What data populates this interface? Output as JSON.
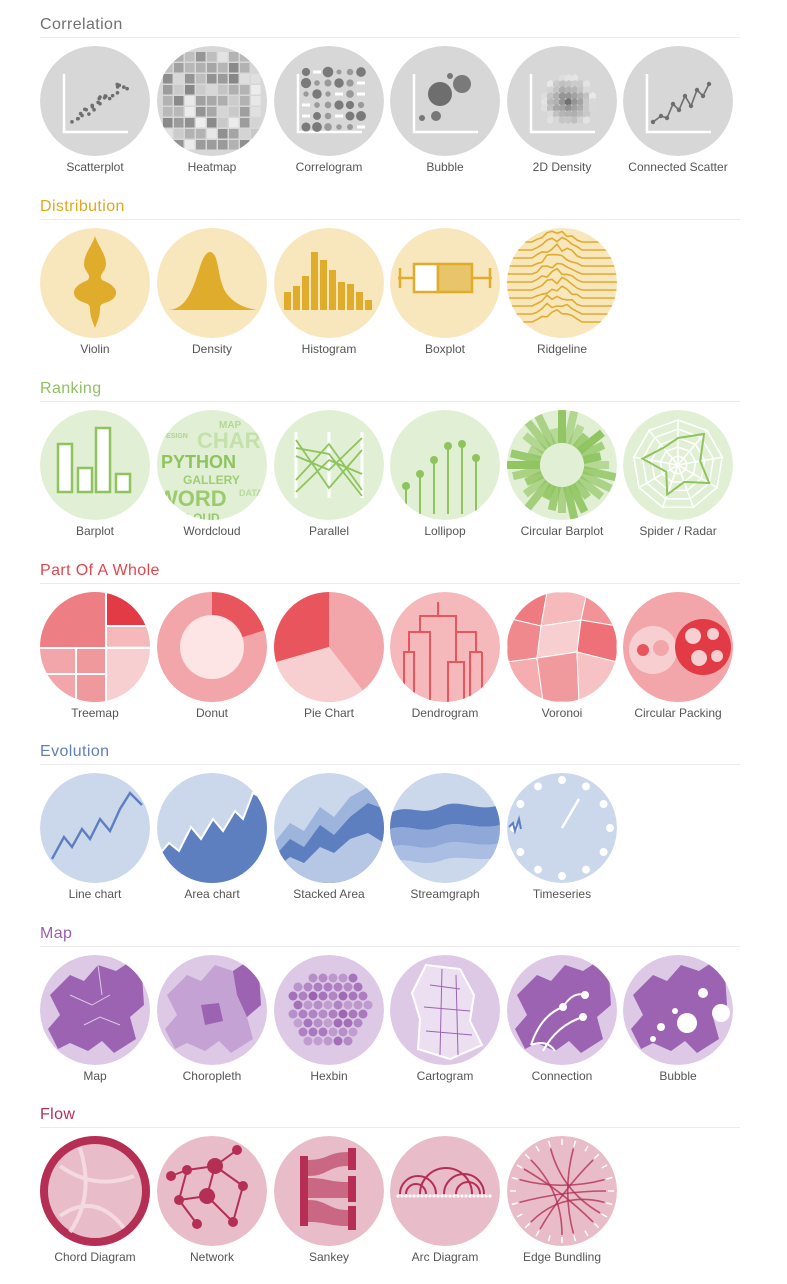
{
  "sections": [
    {
      "title": "Correlation",
      "color": "#707070",
      "bg": "#d7d7d7",
      "accent": "#6e6e6e",
      "items": [
        {
          "label": "Scatterplot",
          "icon": "scatterplot-icon"
        },
        {
          "label": "Heatmap",
          "icon": "heatmap-icon"
        },
        {
          "label": "Correlogram",
          "icon": "correlogram-icon"
        },
        {
          "label": "Bubble",
          "icon": "bubble-icon"
        },
        {
          "label": "2D Density",
          "icon": "density-2d-icon"
        },
        {
          "label": "Connected Scatter",
          "icon": "connected-scatter-icon"
        }
      ]
    },
    {
      "title": "Distribution",
      "color": "#e0a81f",
      "bg": "#f8e6bd",
      "accent": "#e0ac2b",
      "items": [
        {
          "label": "Violin",
          "icon": "violin-icon"
        },
        {
          "label": "Density",
          "icon": "density-icon"
        },
        {
          "label": "Histogram",
          "icon": "histogram-icon"
        },
        {
          "label": "Boxplot",
          "icon": "boxplot-icon"
        },
        {
          "label": "Ridgeline",
          "icon": "ridgeline-icon"
        }
      ]
    },
    {
      "title": "Ranking",
      "color": "#8fc163",
      "bg": "#e1f0d4",
      "accent": "#8ec35e",
      "items": [
        {
          "label": "Barplot",
          "icon": "barplot-icon"
        },
        {
          "label": "Wordcloud",
          "icon": "wordcloud-icon",
          "words": [
            "MAP",
            "CHART",
            "PYTHON",
            "GALLERY",
            "WORD",
            "CLOUD",
            "DESIGN",
            "DATA"
          ]
        },
        {
          "label": "Parallel",
          "icon": "parallel-icon"
        },
        {
          "label": "Lollipop",
          "icon": "lollipop-icon"
        },
        {
          "label": "Circular Barplot",
          "icon": "circular-barplot-icon"
        },
        {
          "label": "Spider / Radar",
          "icon": "spider-radar-icon"
        }
      ]
    },
    {
      "title": "Part Of A Whole",
      "color": "#e0474f",
      "bg": "#f5b8bb",
      "accent": "#e9555c",
      "items": [
        {
          "label": "Treemap",
          "icon": "treemap-icon"
        },
        {
          "label": "Donut",
          "icon": "donut-icon"
        },
        {
          "label": "Pie Chart",
          "icon": "pie-chart-icon"
        },
        {
          "label": "Dendrogram",
          "icon": "dendrogram-icon"
        },
        {
          "label": "Voronoi",
          "icon": "voronoi-icon"
        },
        {
          "label": "Circular Packing",
          "icon": "circular-packing-icon"
        }
      ]
    },
    {
      "title": "Evolution",
      "color": "#5f7fba",
      "bg": "#cbd8ec",
      "accent": "#5d7fc0",
      "items": [
        {
          "label": "Line chart",
          "icon": "line-chart-icon"
        },
        {
          "label": "Area chart",
          "icon": "area-chart-icon"
        },
        {
          "label": "Stacked Area",
          "icon": "stacked-area-icon"
        },
        {
          "label": "Streamgraph",
          "icon": "streamgraph-icon"
        },
        {
          "label": "Timeseries",
          "icon": "timeseries-icon"
        }
      ]
    },
    {
      "title": "Map",
      "color": "#9762ad",
      "bg": "#ddc9e6",
      "accent": "#9b63b2",
      "items": [
        {
          "label": "Map",
          "icon": "map-icon"
        },
        {
          "label": "Choropleth",
          "icon": "choropleth-icon"
        },
        {
          "label": "Hexbin",
          "icon": "hexbin-icon"
        },
        {
          "label": "Cartogram",
          "icon": "cartogram-icon"
        },
        {
          "label": "Connection",
          "icon": "connection-icon"
        },
        {
          "label": "Bubble",
          "icon": "map-bubble-icon"
        }
      ]
    },
    {
      "title": "Flow",
      "color": "#b33154",
      "bg": "#e8bcc8",
      "accent": "#b52f55",
      "items": [
        {
          "label": "Chord Diagram",
          "icon": "chord-diagram-icon"
        },
        {
          "label": "Network",
          "icon": "network-icon"
        },
        {
          "label": "Sankey",
          "icon": "sankey-icon"
        },
        {
          "label": "Arc Diagram",
          "icon": "arc-diagram-icon"
        },
        {
          "label": "Edge Bundling",
          "icon": "edge-bundling-icon"
        }
      ]
    }
  ]
}
